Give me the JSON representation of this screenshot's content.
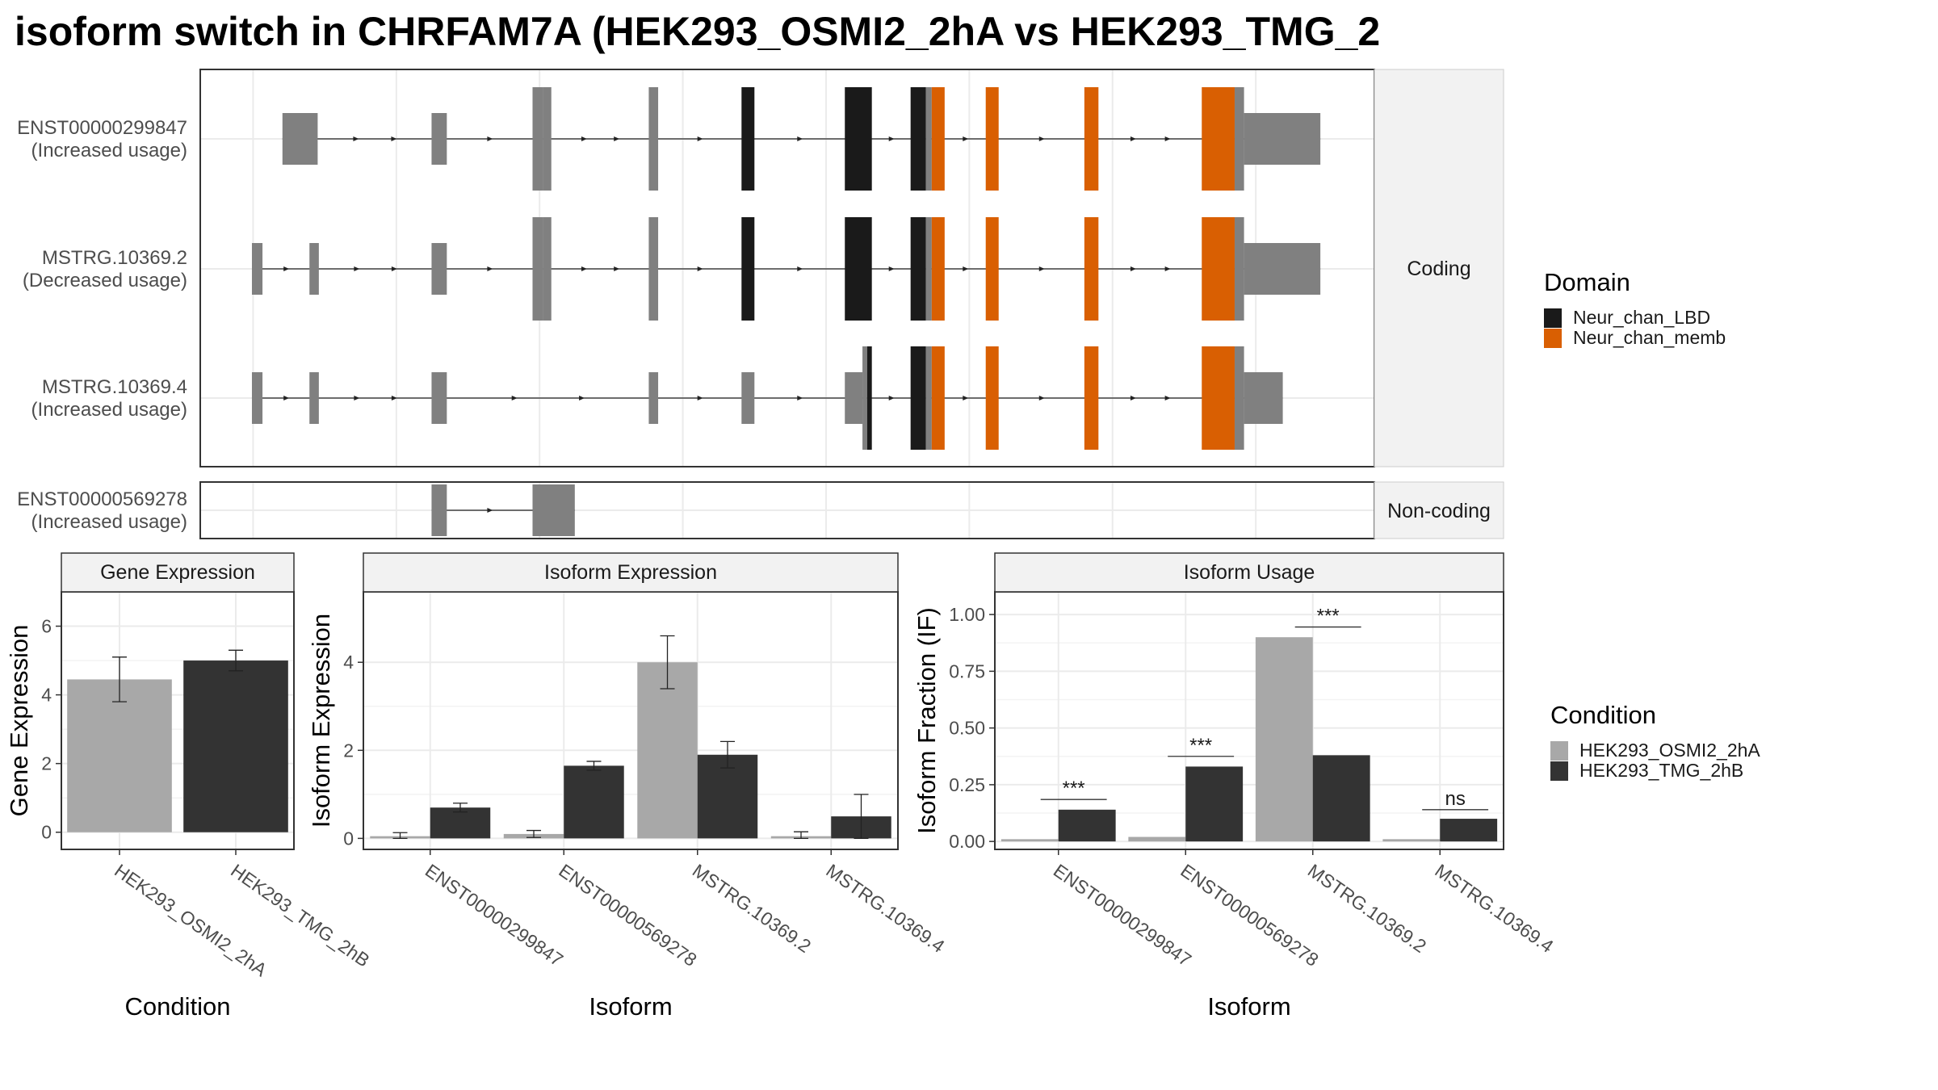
{
  "title": "isoform switch in CHRFAM7A (HEK293_OSMI2_2hA vs HEK293_TMG_2",
  "colors": {
    "utr": "#808080",
    "domain_lbd": "#1a1a1a",
    "domain_memb": "#d95f02",
    "cond_a": "#a8a8a8",
    "cond_b": "#333333",
    "grid": "#ebebeb",
    "strip": "#f2f2f2"
  },
  "gene_structure": {
    "coding_strip_label": "Coding",
    "noncoding_strip_label": "Non-coding",
    "transcripts": [
      {
        "name": "ENST00000299847",
        "usage": "(Increased usage)",
        "group": "coding",
        "exons": [
          {
            "s": 0.07,
            "e": 0.1,
            "type": "utr"
          },
          {
            "s": 0.197,
            "e": 0.21,
            "type": "utr"
          },
          {
            "s": 0.283,
            "e": 0.292,
            "type": "cds"
          },
          {
            "s": 0.292,
            "e": 0.299,
            "type": "cds"
          },
          {
            "s": 0.382,
            "e": 0.39,
            "type": "cds"
          },
          {
            "s": 0.461,
            "e": 0.472,
            "type": "lbd"
          },
          {
            "s": 0.549,
            "e": 0.572,
            "type": "lbd"
          },
          {
            "s": 0.605,
            "e": 0.618,
            "type": "lbd"
          },
          {
            "s": 0.618,
            "e": 0.623,
            "type": "cds"
          },
          {
            "s": 0.623,
            "e": 0.634,
            "type": "memb"
          },
          {
            "s": 0.669,
            "e": 0.68,
            "type": "memb"
          },
          {
            "s": 0.753,
            "e": 0.765,
            "type": "memb"
          },
          {
            "s": 0.853,
            "e": 0.881,
            "type": "memb"
          },
          {
            "s": 0.881,
            "e": 0.889,
            "type": "cds"
          },
          {
            "s": 0.889,
            "e": 0.954,
            "type": "utr"
          }
        ]
      },
      {
        "name": "MSTRG.10369.2",
        "usage": "(Decreased usage)",
        "group": "coding",
        "exons": [
          {
            "s": 0.044,
            "e": 0.053,
            "type": "utr"
          },
          {
            "s": 0.093,
            "e": 0.101,
            "type": "utr"
          },
          {
            "s": 0.197,
            "e": 0.21,
            "type": "utr"
          },
          {
            "s": 0.283,
            "e": 0.292,
            "type": "cds"
          },
          {
            "s": 0.292,
            "e": 0.299,
            "type": "cds"
          },
          {
            "s": 0.382,
            "e": 0.39,
            "type": "cds"
          },
          {
            "s": 0.461,
            "e": 0.472,
            "type": "lbd"
          },
          {
            "s": 0.549,
            "e": 0.572,
            "type": "lbd"
          },
          {
            "s": 0.605,
            "e": 0.618,
            "type": "lbd"
          },
          {
            "s": 0.618,
            "e": 0.623,
            "type": "cds"
          },
          {
            "s": 0.623,
            "e": 0.634,
            "type": "memb"
          },
          {
            "s": 0.669,
            "e": 0.68,
            "type": "memb"
          },
          {
            "s": 0.753,
            "e": 0.765,
            "type": "memb"
          },
          {
            "s": 0.853,
            "e": 0.881,
            "type": "memb"
          },
          {
            "s": 0.881,
            "e": 0.889,
            "type": "cds"
          },
          {
            "s": 0.889,
            "e": 0.954,
            "type": "utr"
          }
        ]
      },
      {
        "name": "MSTRG.10369.4",
        "usage": "(Increased usage)",
        "group": "coding",
        "exons": [
          {
            "s": 0.044,
            "e": 0.053,
            "type": "utr"
          },
          {
            "s": 0.093,
            "e": 0.101,
            "type": "utr"
          },
          {
            "s": 0.197,
            "e": 0.21,
            "type": "utr"
          },
          {
            "s": 0.382,
            "e": 0.39,
            "type": "utr"
          },
          {
            "s": 0.461,
            "e": 0.472,
            "type": "utr"
          },
          {
            "s": 0.549,
            "e": 0.564,
            "type": "utr"
          },
          {
            "s": 0.564,
            "e": 0.568,
            "type": "cds"
          },
          {
            "s": 0.568,
            "e": 0.572,
            "type": "lbd"
          },
          {
            "s": 0.605,
            "e": 0.618,
            "type": "lbd"
          },
          {
            "s": 0.618,
            "e": 0.623,
            "type": "cds"
          },
          {
            "s": 0.623,
            "e": 0.634,
            "type": "memb"
          },
          {
            "s": 0.669,
            "e": 0.68,
            "type": "memb"
          },
          {
            "s": 0.753,
            "e": 0.765,
            "type": "memb"
          },
          {
            "s": 0.853,
            "e": 0.881,
            "type": "memb"
          },
          {
            "s": 0.881,
            "e": 0.889,
            "type": "cds"
          },
          {
            "s": 0.889,
            "e": 0.922,
            "type": "utr"
          }
        ]
      },
      {
        "name": "ENST00000569278",
        "usage": "(Increased usage)",
        "group": "noncoding",
        "exons": [
          {
            "s": 0.197,
            "e": 0.21,
            "type": "utr"
          },
          {
            "s": 0.283,
            "e": 0.319,
            "type": "utr"
          }
        ]
      }
    ]
  },
  "domain_legend": {
    "title": "Domain",
    "items": [
      {
        "label": "Neur_chan_LBD",
        "key": "domain_lbd"
      },
      {
        "label": "Neur_chan_memb",
        "key": "domain_memb"
      }
    ]
  },
  "condition_legend": {
    "title": "Condition",
    "items": [
      {
        "label": "HEK293_OSMI2_2hA",
        "key": "cond_a"
      },
      {
        "label": "HEK293_TMG_2hB",
        "key": "cond_b"
      }
    ]
  },
  "chart_data": [
    {
      "type": "bar",
      "title": "Gene Expression",
      "xlabel": "Condition",
      "ylabel": "Gene Expression",
      "ylim": [
        -0.5,
        7
      ],
      "yticks": [
        0,
        2,
        4,
        6
      ],
      "ytick_labels": [
        "0",
        "2",
        "4",
        "6"
      ],
      "grouped": false,
      "categories": [
        "HEK293_OSMI2_2hA",
        "HEK293_TMG_2hB"
      ],
      "series": [
        {
          "condition": "HEK293_OSMI2_2hA",
          "color_key": "cond_a",
          "values": [
            4.45,
            null
          ],
          "err_low": [
            3.8,
            null
          ],
          "err_high": [
            5.1,
            null
          ]
        },
        {
          "condition": "HEK293_TMG_2hB",
          "color_key": "cond_b",
          "values": [
            null,
            5.0
          ],
          "err_low": [
            null,
            4.7
          ],
          "err_high": [
            null,
            5.3
          ]
        }
      ]
    },
    {
      "type": "bar",
      "title": "Isoform Expression",
      "xlabel": "Isoform",
      "ylabel": "Isoform Expression",
      "ylim": [
        -0.25,
        5.6
      ],
      "yticks": [
        0,
        2,
        4
      ],
      "ytick_labels": [
        "0",
        "2",
        "4"
      ],
      "grouped": true,
      "categories": [
        "ENST00000299847",
        "ENST00000569278",
        "MSTRG.10369.2",
        "MSTRG.10369.4"
      ],
      "series": [
        {
          "condition": "HEK293_OSMI2_2hA",
          "color_key": "cond_a",
          "values": [
            0.05,
            0.1,
            4.0,
            0.05
          ],
          "err_low": [
            0.0,
            0.02,
            3.4,
            0.0
          ],
          "err_high": [
            0.13,
            0.18,
            4.6,
            0.15
          ]
        },
        {
          "condition": "HEK293_TMG_2hB",
          "color_key": "cond_b",
          "values": [
            0.7,
            1.65,
            1.9,
            0.5
          ],
          "err_low": [
            0.6,
            1.55,
            1.6,
            0.0
          ],
          "err_high": [
            0.8,
            1.75,
            2.2,
            1.0
          ]
        }
      ]
    },
    {
      "type": "bar",
      "title": "Isoform Usage",
      "xlabel": "Isoform",
      "ylabel": "Isoform Fraction (IF)",
      "ylim": [
        -0.035,
        1.1
      ],
      "yticks": [
        0,
        0.25,
        0.5,
        0.75,
        1.0
      ],
      "ytick_labels": [
        "0.00",
        "0.25",
        "0.50",
        "0.75",
        "1.00"
      ],
      "grouped": true,
      "categories": [
        "ENST00000299847",
        "ENST00000569278",
        "MSTRG.10369.2",
        "MSTRG.10369.4"
      ],
      "series": [
        {
          "condition": "HEK293_OSMI2_2hA",
          "color_key": "cond_a",
          "values": [
            0.01,
            0.02,
            0.9,
            0.01
          ]
        },
        {
          "condition": "HEK293_TMG_2hB",
          "color_key": "cond_b",
          "values": [
            0.14,
            0.33,
            0.38,
            0.1
          ]
        }
      ],
      "significance": [
        {
          "category": 0,
          "label": "***",
          "y": 0.185
        },
        {
          "category": 1,
          "label": "***",
          "y": 0.375
        },
        {
          "category": 2,
          "label": "***",
          "y": 0.945
        },
        {
          "category": 3,
          "label": "ns",
          "y": 0.14
        }
      ]
    }
  ]
}
